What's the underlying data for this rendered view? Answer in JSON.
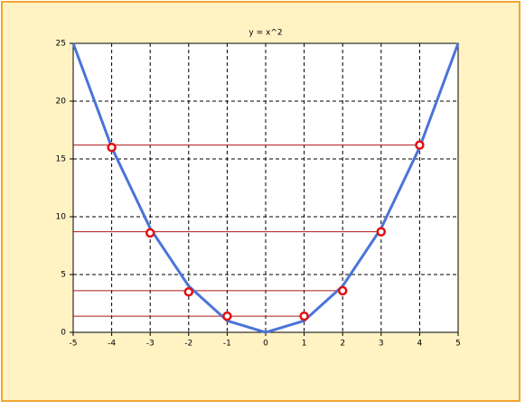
{
  "chart_data": {
    "type": "line",
    "title": "y = x^2",
    "x": [
      -5,
      -4,
      -3,
      -2,
      -1,
      0,
      1,
      2,
      3,
      4,
      5
    ],
    "series": [
      {
        "color": "#4a74d8",
        "values": [
          25,
          16,
          9,
          4,
          1,
          0,
          1,
          4,
          9,
          16,
          25
        ]
      }
    ],
    "markers": {
      "color": "#e01010",
      "line_color": "#b01818",
      "x": [
        -4,
        -3,
        -2,
        -1,
        1,
        2,
        3,
        4
      ],
      "values": [
        16,
        8.6,
        3.5,
        1.4,
        1.4,
        3.6,
        8.7,
        16.2
      ]
    },
    "xlim": [
      -5,
      5
    ],
    "xticks": [
      -5,
      -4,
      -3,
      -2,
      -1,
      0,
      1,
      2,
      3,
      4,
      5
    ],
    "ylim": [
      0,
      25
    ],
    "yticks": [
      0,
      5,
      10,
      15,
      20,
      25
    ],
    "grid": true
  }
}
